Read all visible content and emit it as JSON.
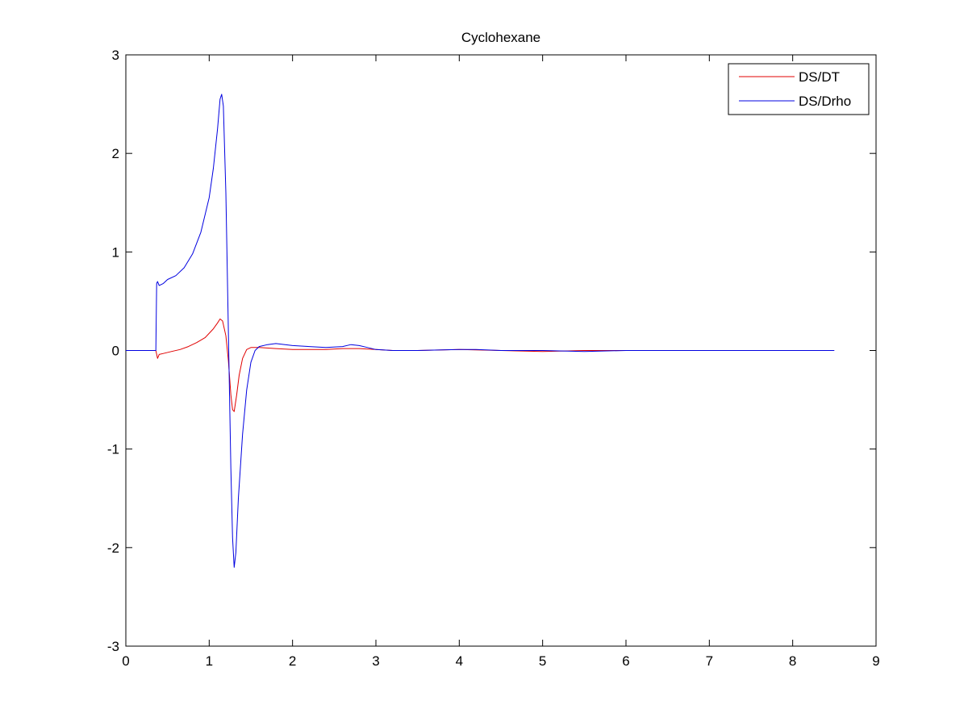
{
  "chart_data": {
    "type": "line",
    "title": "Cyclohexane",
    "xlabel": "",
    "ylabel": "",
    "xlim": [
      0,
      9
    ],
    "ylim": [
      -3,
      3
    ],
    "xticks": [
      "0",
      "1",
      "2",
      "3",
      "4",
      "5",
      "6",
      "7",
      "8",
      "9"
    ],
    "yticks": [
      "-3",
      "-2",
      "-1",
      "0",
      "1",
      "2",
      "3"
    ],
    "grid": false,
    "legend_position": "top-right",
    "series": [
      {
        "name": "DS/DT",
        "color": "#e00000",
        "x": [
          0,
          0.36,
          0.38,
          0.4,
          0.45,
          0.55,
          0.65,
          0.75,
          0.85,
          0.95,
          1.05,
          1.1,
          1.13,
          1.16,
          1.2,
          1.23,
          1.26,
          1.28,
          1.3,
          1.33,
          1.36,
          1.4,
          1.45,
          1.5,
          1.6,
          1.8,
          2.0,
          2.2,
          2.4,
          2.6,
          2.8,
          3.0,
          3.2,
          3.5,
          4.0,
          4.5,
          5.0,
          5.5,
          6.0,
          6.5,
          7.0,
          7.5,
          7.7
        ],
        "y": [
          0,
          0,
          -0.08,
          -0.04,
          -0.03,
          -0.01,
          0.01,
          0.04,
          0.08,
          0.13,
          0.22,
          0.28,
          0.32,
          0.3,
          0.15,
          -0.1,
          -0.45,
          -0.6,
          -0.62,
          -0.45,
          -0.25,
          -0.08,
          0.01,
          0.03,
          0.03,
          0.02,
          0.01,
          0.01,
          0.01,
          0.02,
          0.02,
          0.01,
          0.0,
          0.0,
          0.01,
          0.0,
          -0.01,
          0.0,
          0.0,
          0.0,
          0.0,
          0.0,
          0.0
        ]
      },
      {
        "name": "DS/Drho",
        "color": "#0000e0",
        "x": [
          0,
          0.36,
          0.37,
          0.38,
          0.4,
          0.45,
          0.5,
          0.6,
          0.7,
          0.8,
          0.9,
          1.0,
          1.05,
          1.1,
          1.13,
          1.15,
          1.17,
          1.2,
          1.23,
          1.26,
          1.28,
          1.3,
          1.32,
          1.35,
          1.4,
          1.45,
          1.5,
          1.55,
          1.6,
          1.7,
          1.8,
          2.0,
          2.2,
          2.4,
          2.6,
          2.7,
          2.8,
          2.9,
          3.0,
          3.2,
          3.5,
          4.0,
          4.2,
          4.5,
          5.0,
          5.5,
          6.0,
          6.5,
          7.0,
          7.5,
          8.0,
          8.5
        ],
        "y": [
          0,
          0,
          0.68,
          0.7,
          0.66,
          0.68,
          0.72,
          0.76,
          0.84,
          0.98,
          1.2,
          1.55,
          1.85,
          2.25,
          2.55,
          2.6,
          2.48,
          1.6,
          0.2,
          -1.2,
          -1.9,
          -2.2,
          -2.05,
          -1.5,
          -0.85,
          -0.4,
          -0.12,
          0.0,
          0.04,
          0.06,
          0.07,
          0.05,
          0.04,
          0.03,
          0.04,
          0.06,
          0.05,
          0.03,
          0.01,
          0.0,
          0.0,
          0.01,
          0.01,
          0.0,
          0.0,
          -0.01,
          0.0,
          0.0,
          0.0,
          0.0,
          0.0,
          0.0
        ]
      }
    ]
  }
}
